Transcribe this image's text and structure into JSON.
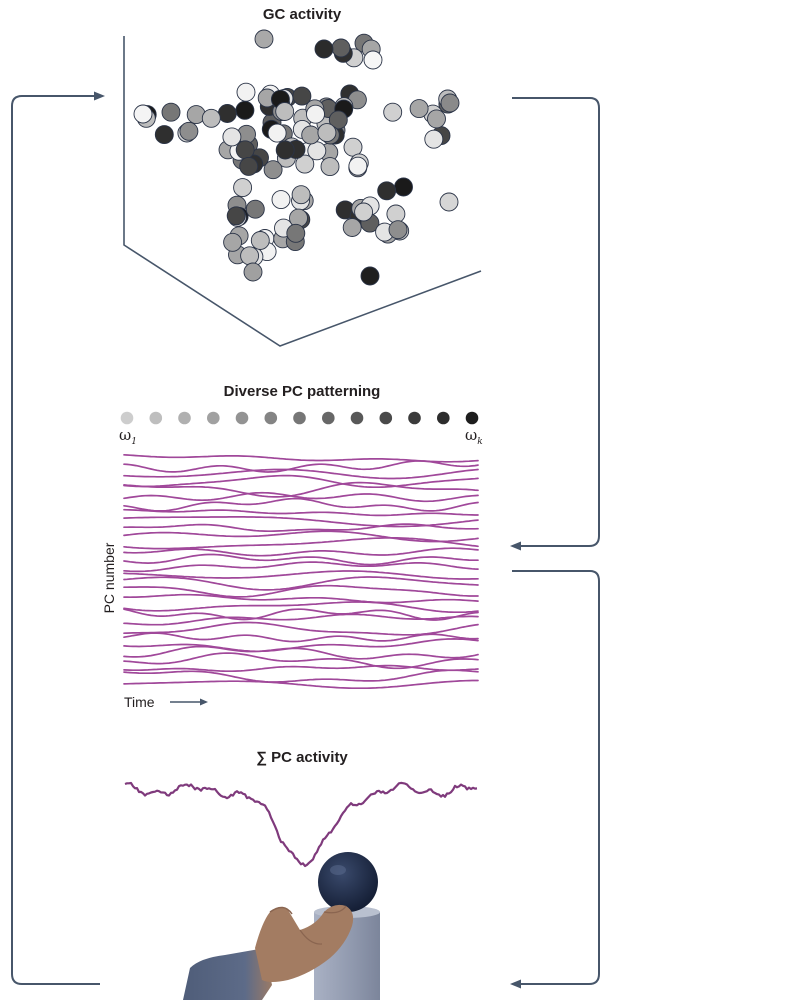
{
  "panel_gc": {
    "title": "GC activity"
  },
  "panel_pc": {
    "title": "Diverse PC patterning",
    "omega_first": "ω",
    "omega_first_sub": "1",
    "omega_last": "ω",
    "omega_last_sub": "k",
    "y_label": "PC number",
    "x_label": "Time",
    "trace_color": "#a0489a"
  },
  "panel_sum": {
    "title": "∑ PC activity",
    "trace_color": "#7f3a7c"
  },
  "colors": {
    "arrow": "#47566a",
    "frame": "#47566a",
    "ball": "#1d2a45",
    "pedestal": "#9aa3b8",
    "hand": "#a37c62",
    "sleeve": "#56647f"
  }
}
